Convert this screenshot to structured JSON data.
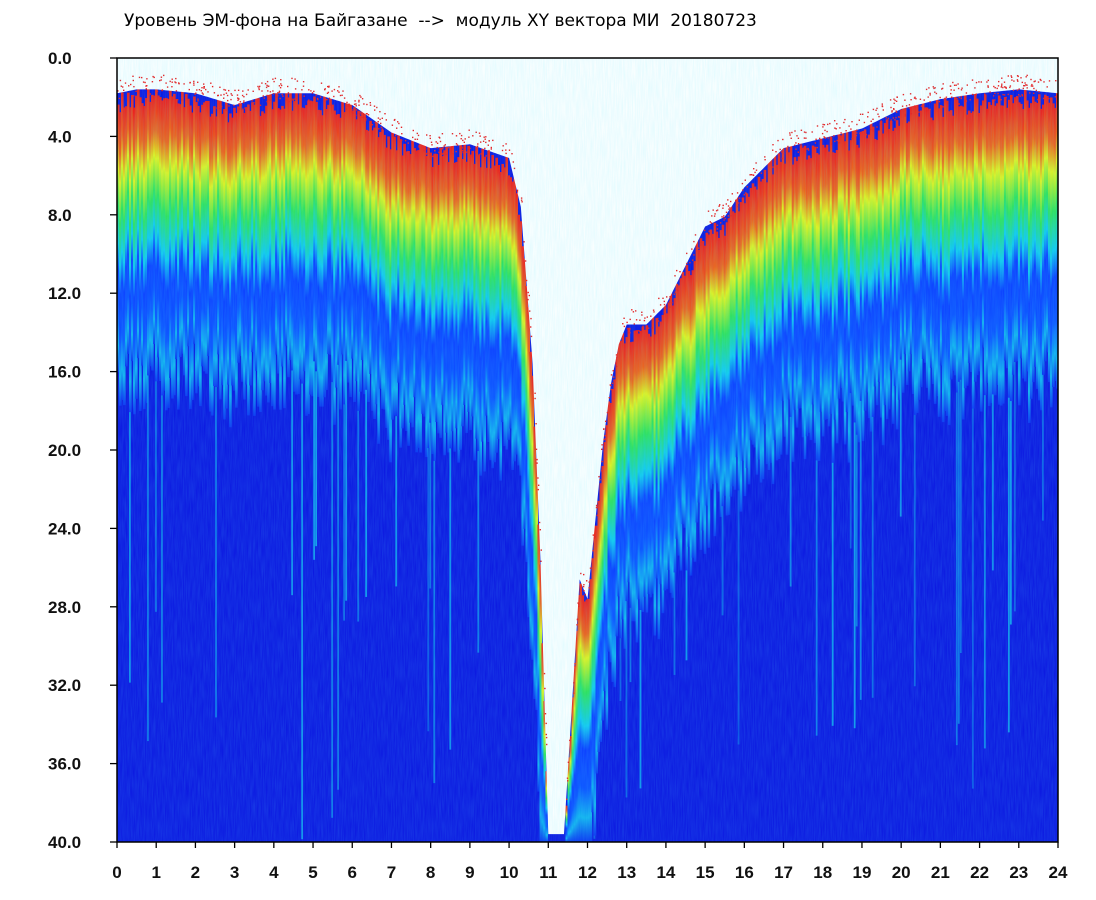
{
  "chart_data": {
    "type": "heatmap",
    "title": "Уровень ЭМ-фона на Байгазане  -->  модуль XY вектора МИ  20180723",
    "xlabel": "",
    "ylabel": "",
    "x_range": [
      0,
      24
    ],
    "y_range": [
      0.0,
      40.0
    ],
    "y_inverted": true,
    "grid": false,
    "x_tick_labels": [
      "0",
      "1",
      "2",
      "3",
      "4",
      "5",
      "6",
      "7",
      "8",
      "9",
      "10",
      "11",
      "12",
      "13",
      "14",
      "15",
      "16",
      "17",
      "18",
      "19",
      "20",
      "21",
      "22",
      "23",
      "24"
    ],
    "y_tick_labels": [
      "0.0",
      "4.0",
      "8.0",
      "12.0",
      "16.0",
      "20.0",
      "24.0",
      "28.0",
      "32.0",
      "36.0",
      "40.0"
    ],
    "colors": {
      "background": "#0a14e0",
      "blue_light": "#0a3cff",
      "cyan": "#10c8ee",
      "green": "#2ee05a",
      "yellow": "#e2f21a",
      "red": "#f01818",
      "empty": "#ffffff"
    },
    "upper_boundary": {
      "description_key": "approximate top edge of the noise band (data-units on y axis) across hours",
      "x": [
        0.0,
        0.5,
        1.0,
        2.0,
        3.0,
        4.0,
        5.0,
        6.0,
        7.0,
        8.0,
        9.0,
        10.0,
        10.3,
        10.6,
        10.8,
        11.0,
        11.4,
        11.8,
        12.0,
        12.2,
        12.4,
        12.6,
        12.8,
        13.0,
        13.5,
        14.0,
        14.5,
        15.0,
        15.5,
        16.0,
        17.0,
        18.0,
        19.0,
        20.0,
        21.0,
        22.0,
        23.0,
        24.0
      ],
      "y": [
        2.2,
        2.0,
        2.0,
        2.2,
        2.8,
        2.2,
        2.2,
        2.8,
        4.2,
        5.0,
        4.8,
        5.5,
        8.0,
        16.0,
        26.0,
        40.0,
        40.0,
        27.0,
        28.0,
        24.0,
        20.0,
        17.0,
        15.0,
        14.0,
        14.0,
        13.0,
        11.0,
        9.0,
        8.5,
        7.0,
        5.0,
        4.5,
        4.0,
        3.0,
        2.5,
        2.2,
        2.0,
        2.2
      ]
    }
  }
}
